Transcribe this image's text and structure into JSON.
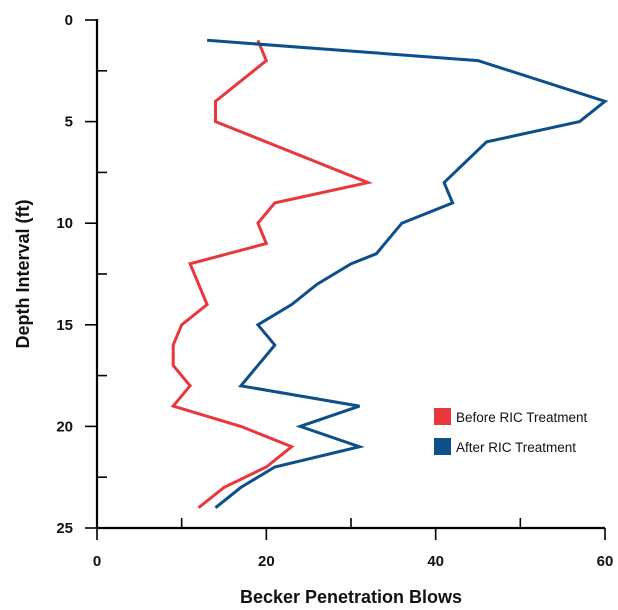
{
  "chart_data": {
    "type": "line",
    "xlabel": "Becker Penetration Blows",
    "ylabel": "Depth Interval (ft)",
    "xlim": [
      0,
      60
    ],
    "ylim": [
      0,
      25
    ],
    "y_inverted": true,
    "x_ticks": [
      "0",
      "20",
      "40",
      "60"
    ],
    "y_ticks": [
      "0",
      "5",
      "10",
      "15",
      "20",
      "25"
    ],
    "grid": false,
    "legend_position": "bottom-right",
    "series": [
      {
        "name": "Before RIC Treatment",
        "color": "#e8383d",
        "points": [
          {
            "x": 19,
            "y": 1
          },
          {
            "x": 20,
            "y": 2
          },
          {
            "x": 14,
            "y": 4
          },
          {
            "x": 14,
            "y": 5
          },
          {
            "x": 32,
            "y": 8
          },
          {
            "x": 21,
            "y": 9
          },
          {
            "x": 19,
            "y": 10
          },
          {
            "x": 20,
            "y": 11
          },
          {
            "x": 11,
            "y": 12
          },
          {
            "x": 13,
            "y": 14
          },
          {
            "x": 10,
            "y": 15
          },
          {
            "x": 9,
            "y": 16
          },
          {
            "x": 9,
            "y": 17
          },
          {
            "x": 11,
            "y": 18
          },
          {
            "x": 9,
            "y": 19
          },
          {
            "x": 17,
            "y": 20
          },
          {
            "x": 23,
            "y": 21
          },
          {
            "x": 20,
            "y": 22
          },
          {
            "x": 15,
            "y": 23
          },
          {
            "x": 12,
            "y": 24
          }
        ]
      },
      {
        "name": "After RIC Treatment",
        "color": "#0d4f8b",
        "points": [
          {
            "x": 13,
            "y": 1
          },
          {
            "x": 45,
            "y": 2
          },
          {
            "x": 60,
            "y": 4
          },
          {
            "x": 57,
            "y": 5
          },
          {
            "x": 46,
            "y": 6
          },
          {
            "x": 41,
            "y": 8
          },
          {
            "x": 42,
            "y": 9
          },
          {
            "x": 36,
            "y": 10
          },
          {
            "x": 33,
            "y": 11.5
          },
          {
            "x": 30,
            "y": 12
          },
          {
            "x": 26,
            "y": 13
          },
          {
            "x": 23,
            "y": 14
          },
          {
            "x": 19,
            "y": 15
          },
          {
            "x": 21,
            "y": 16
          },
          {
            "x": 17,
            "y": 18
          },
          {
            "x": 31,
            "y": 19
          },
          {
            "x": 24,
            "y": 20
          },
          {
            "x": 31,
            "y": 21
          },
          {
            "x": 21,
            "y": 22
          },
          {
            "x": 17,
            "y": 23
          },
          {
            "x": 14,
            "y": 24
          }
        ]
      }
    ]
  }
}
